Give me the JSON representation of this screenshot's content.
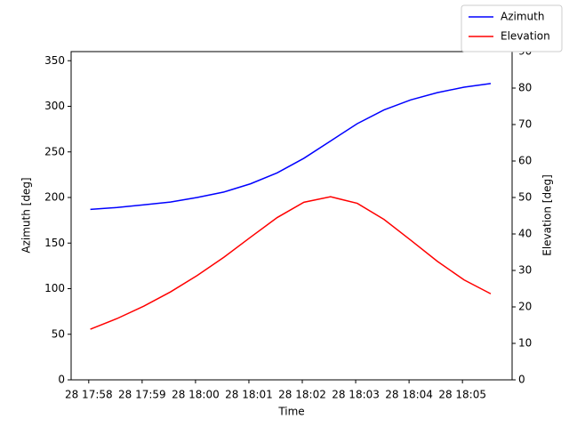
{
  "chart_data": {
    "type": "line",
    "x_label": "Time",
    "y_label": "Azimuth [deg]",
    "y2_label": "Elevation [deg]",
    "x": [
      58.03,
      58.53,
      59.03,
      59.53,
      60.03,
      60.53,
      61.03,
      61.53,
      62.03,
      62.53,
      63.03,
      63.53,
      64.03,
      64.53,
      65.03,
      65.53
    ],
    "series": [
      {
        "name": "Azimuth",
        "color": "#0000ff",
        "axis": "y",
        "values": [
          187,
          189,
          192,
          195,
          200,
          206,
          215,
          227,
          243,
          262,
          281,
          296,
          307,
          315,
          321,
          325
        ]
      },
      {
        "name": "Elevation",
        "color": "#ff0000",
        "axis": "y2",
        "values": [
          13.9,
          16.8,
          20.2,
          24.1,
          28.6,
          33.6,
          39.1,
          44.5,
          48.7,
          50.2,
          48.4,
          44.0,
          38.3,
          32.5,
          27.4,
          23.6
        ]
      }
    ],
    "xlim": [
      57.67,
      65.93
    ],
    "xticks": [
      {
        "value": 58,
        "label": "28 17:58"
      },
      {
        "value": 59,
        "label": "28 17:59"
      },
      {
        "value": 60,
        "label": "28 18:00"
      },
      {
        "value": 61,
        "label": "28 18:01"
      },
      {
        "value": 62,
        "label": "28 18:02"
      },
      {
        "value": 63,
        "label": "28 18:03"
      },
      {
        "value": 64,
        "label": "28 18:04"
      },
      {
        "value": 65,
        "label": "28 18:05"
      }
    ],
    "ylim": [
      0,
      360
    ],
    "yticks": [
      0,
      50,
      100,
      150,
      200,
      250,
      300,
      350
    ],
    "y2lim": [
      0,
      90
    ],
    "y2ticks": [
      0,
      10,
      20,
      30,
      40,
      50,
      60,
      70,
      80,
      90
    ],
    "legend": "upper right"
  }
}
